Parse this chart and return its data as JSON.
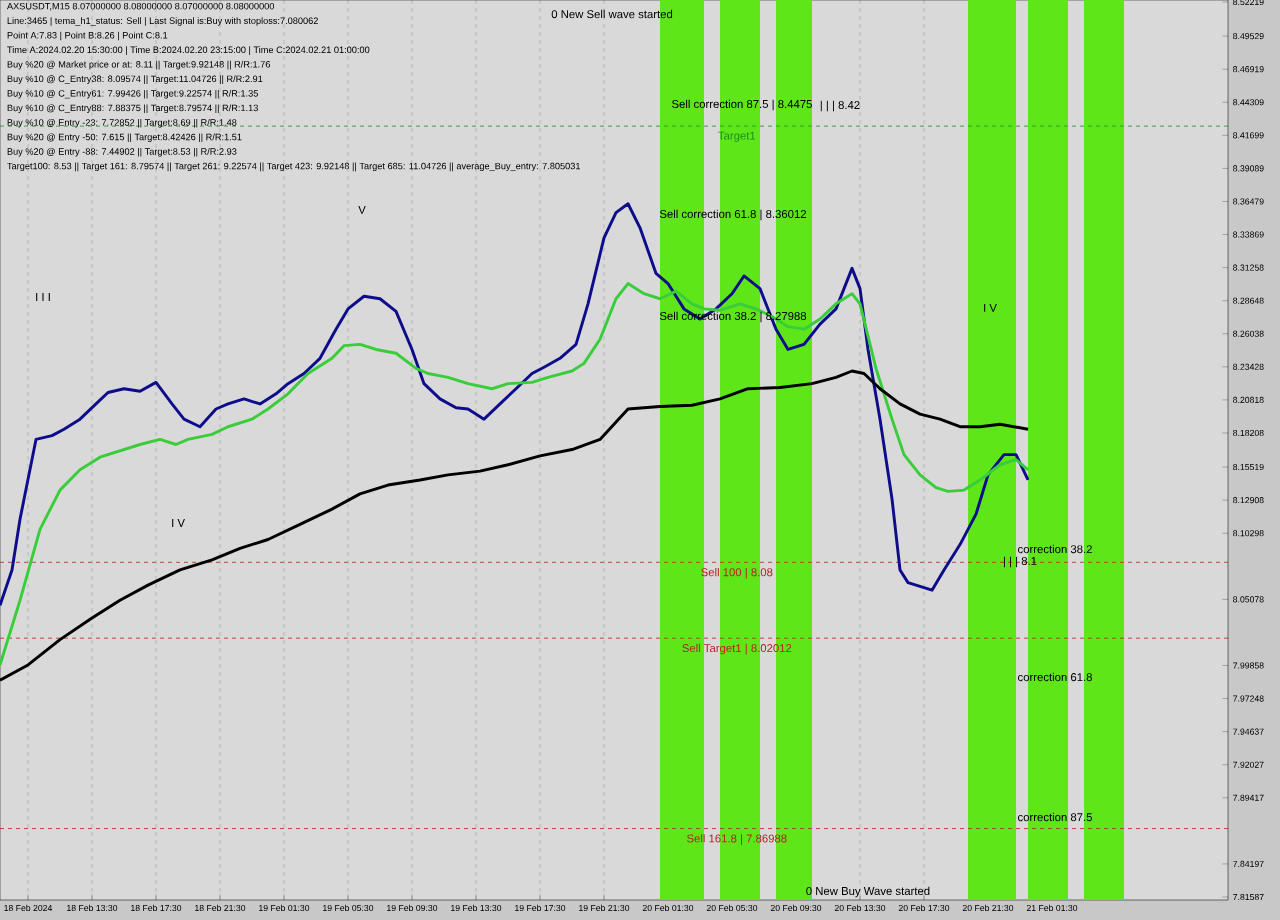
{
  "chart_data": {
    "type": "line",
    "title": "AXSUSDT,M15  8.07000000 8.08000000 8.07000000 8.08000000",
    "xlim": [
      "2024-02-18T07:45",
      "2024-02-21T12:30"
    ],
    "ylim": [
      7.8135,
      8.5238
    ],
    "xticks": [
      {
        "value": "2024-02-18T09:30",
        "label": "18 Feb 2024"
      },
      {
        "value": "2024-02-18T13:30",
        "label": "18 Feb 13:30"
      },
      {
        "value": "2024-02-18T17:30",
        "label": "18 Feb 17:30"
      },
      {
        "value": "2024-02-18T21:30",
        "label": "18 Feb 21:30"
      },
      {
        "value": "2024-02-19T01:30",
        "label": "19 Feb 01:30"
      },
      {
        "value": "2024-02-19T05:30",
        "label": "19 Feb 05:30"
      },
      {
        "value": "2024-02-19T09:30",
        "label": "19 Feb 09:30"
      },
      {
        "value": "2024-02-19T13:30",
        "label": "19 Feb 13:30"
      },
      {
        "value": "2024-02-19T17:30",
        "label": "19 Feb 17:30"
      },
      {
        "value": "2024-02-19T21:30",
        "label": "19 Feb 21:30"
      },
      {
        "value": "2024-02-20T01:30",
        "label": "20 Feb 01:30"
      },
      {
        "value": "2024-02-20T05:30",
        "label": "20 Feb 05:30"
      },
      {
        "value": "2024-02-20T09:30",
        "label": "20 Feb 09:30"
      },
      {
        "value": "2024-02-20T13:30",
        "label": "20 Feb 13:30"
      },
      {
        "value": "2024-02-20T17:30",
        "label": "20 Feb 17:30"
      },
      {
        "value": "2024-02-20T21:30",
        "label": "20 Feb 21:30"
      },
      {
        "value": "2024-02-21T01:30",
        "label": "21 Feb 01:30"
      }
    ],
    "yticks": [
      8.52219,
      8.49529,
      8.46919,
      8.44309,
      8.41699,
      8.39089,
      8.36479,
      8.33869,
      8.31258,
      8.28648,
      8.26038,
      8.23428,
      8.20818,
      8.18208,
      8.15519,
      8.12908,
      8.10298,
      8.05078,
      7.99858,
      7.97248,
      7.94637,
      7.92027,
      7.89417,
      7.84197,
      7.81587
    ],
    "grid": "x",
    "line_style": "solid",
    "marker": "none",
    "series": [
      {
        "color": "#0d0d8c",
        "x": [
          "2024-02-18T07:45",
          "2024-02-18T08:30",
          "2024-02-18T09:00",
          "2024-02-18T10:00",
          "2024-02-18T11:00",
          "2024-02-18T11:45",
          "2024-02-18T12:45",
          "2024-02-18T13:45",
          "2024-02-18T14:30",
          "2024-02-18T15:30",
          "2024-02-18T16:30",
          "2024-02-18T17:30",
          "2024-02-18T18:30",
          "2024-02-18T19:15",
          "2024-02-18T20:15",
          "2024-02-18T21:15",
          "2024-02-18T22:00",
          "2024-02-18T23:00",
          "2024-02-19T00:00",
          "2024-02-19T01:00",
          "2024-02-19T01:45",
          "2024-02-19T02:45",
          "2024-02-19T03:45",
          "2024-02-19T04:45",
          "2024-02-19T05:30",
          "2024-02-19T06:30",
          "2024-02-19T07:30",
          "2024-02-19T08:30",
          "2024-02-19T09:30",
          "2024-02-19T10:15",
          "2024-02-19T11:15",
          "2024-02-19T12:15",
          "2024-02-19T13:00",
          "2024-02-19T14:00",
          "2024-02-19T15:00",
          "2024-02-19T16:00",
          "2024-02-19T17:00",
          "2024-02-19T17:45",
          "2024-02-19T18:45",
          "2024-02-19T19:45",
          "2024-02-19T20:30",
          "2024-02-19T21:30",
          "2024-02-19T22:15",
          "2024-02-19T23:00",
          "2024-02-19T23:45",
          "2024-02-20T00:45",
          "2024-02-20T01:30",
          "2024-02-20T02:30",
          "2024-02-20T03:30",
          "2024-02-20T04:30",
          "2024-02-20T05:30",
          "2024-02-20T06:15",
          "2024-02-20T07:15",
          "2024-02-20T08:15",
          "2024-02-20T09:00",
          "2024-02-20T10:00",
          "2024-02-20T11:00",
          "2024-02-20T12:00",
          "2024-02-20T13:00",
          "2024-02-20T13:30",
          "2024-02-20T14:00",
          "2024-02-20T14:45",
          "2024-02-20T15:30",
          "2024-02-20T16:00",
          "2024-02-20T16:30",
          "2024-02-20T18:00",
          "2024-02-20T18:45",
          "2024-02-20T19:45",
          "2024-02-20T20:45",
          "2024-02-20T21:30",
          "2024-02-20T22:30",
          "2024-02-20T23:15",
          "2024-02-21T00:00"
        ],
        "values": [
          8.046,
          8.074,
          8.114,
          8.177,
          8.18,
          8.185,
          8.193,
          8.205,
          8.214,
          8.217,
          8.215,
          8.222,
          8.205,
          8.193,
          8.187,
          8.201,
          8.205,
          8.209,
          8.205,
          8.213,
          8.221,
          8.229,
          8.241,
          8.264,
          8.28,
          8.29,
          8.288,
          8.278,
          8.248,
          8.221,
          8.209,
          8.202,
          8.201,
          8.193,
          8.205,
          8.217,
          8.229,
          8.234,
          8.241,
          8.252,
          8.284,
          8.336,
          8.356,
          8.363,
          8.344,
          8.308,
          8.3,
          8.28,
          8.272,
          8.28,
          8.292,
          8.306,
          8.296,
          8.264,
          8.248,
          8.252,
          8.268,
          8.28,
          8.312,
          8.296,
          8.248,
          8.193,
          8.13,
          8.074,
          8.064,
          8.058,
          8.074,
          8.094,
          8.118,
          8.149,
          8.165,
          8.165,
          8.145
        ]
      },
      {
        "color": "#3acd3a",
        "x": [
          "2024-02-18T07:45",
          "2024-02-18T09:00",
          "2024-02-18T10:15",
          "2024-02-18T11:30",
          "2024-02-18T12:45",
          "2024-02-18T14:00",
          "2024-02-18T15:15",
          "2024-02-18T16:30",
          "2024-02-18T17:45",
          "2024-02-18T18:45",
          "2024-02-18T19:30",
          "2024-02-18T21:00",
          "2024-02-18T22:00",
          "2024-02-18T23:30",
          "2024-02-19T00:30",
          "2024-02-19T01:45",
          "2024-02-19T03:00",
          "2024-02-19T04:30",
          "2024-02-19T05:15",
          "2024-02-19T06:15",
          "2024-02-19T07:15",
          "2024-02-19T08:30",
          "2024-02-19T09:45",
          "2024-02-19T10:30",
          "2024-02-19T11:45",
          "2024-02-19T13:00",
          "2024-02-19T14:30",
          "2024-02-19T15:30",
          "2024-02-19T17:00",
          "2024-02-19T18:00",
          "2024-02-19T19:30",
          "2024-02-19T20:15",
          "2024-02-19T21:15",
          "2024-02-19T22:15",
          "2024-02-19T23:00",
          "2024-02-20T00:00",
          "2024-02-20T01:00",
          "2024-02-20T02:00",
          "2024-02-20T03:00",
          "2024-02-20T03:45",
          "2024-02-20T04:45",
          "2024-02-20T06:00",
          "2024-02-20T07:00",
          "2024-02-20T08:00",
          "2024-02-20T09:00",
          "2024-02-20T10:00",
          "2024-02-20T11:00",
          "2024-02-20T12:00",
          "2024-02-20T13:00",
          "2024-02-20T13:30",
          "2024-02-20T14:30",
          "2024-02-20T15:30",
          "2024-02-20T16:15",
          "2024-02-20T17:15",
          "2024-02-20T18:15",
          "2024-02-20T19:00",
          "2024-02-20T20:00",
          "2024-02-20T21:00",
          "2024-02-20T22:15",
          "2024-02-20T23:15",
          "2024-02-21T00:00"
        ],
        "values": [
          7.999,
          8.05,
          8.106,
          8.137,
          8.153,
          8.163,
          8.168,
          8.173,
          8.177,
          8.173,
          8.177,
          8.181,
          8.187,
          8.193,
          8.201,
          8.213,
          8.229,
          8.241,
          8.251,
          8.252,
          8.248,
          8.245,
          8.233,
          8.229,
          8.226,
          8.221,
          8.217,
          8.221,
          8.222,
          8.226,
          8.231,
          8.237,
          8.256,
          8.288,
          8.3,
          8.292,
          8.288,
          8.294,
          8.284,
          8.28,
          8.279,
          8.284,
          8.28,
          8.274,
          8.266,
          8.264,
          8.272,
          8.284,
          8.292,
          8.284,
          8.233,
          8.193,
          8.165,
          8.149,
          8.139,
          8.136,
          8.137,
          8.145,
          8.157,
          8.161,
          8.153
        ]
      },
      {
        "color": "#000000",
        "x": [
          "2024-02-18T07:45",
          "2024-02-18T09:30",
          "2024-02-18T11:30",
          "2024-02-18T13:30",
          "2024-02-18T15:15",
          "2024-02-18T17:00",
          "2024-02-18T19:00",
          "2024-02-18T21:00",
          "2024-02-18T22:45",
          "2024-02-19T00:30",
          "2024-02-19T02:30",
          "2024-02-19T04:30",
          "2024-02-19T06:15",
          "2024-02-19T08:00",
          "2024-02-19T10:00",
          "2024-02-19T11:45",
          "2024-02-19T13:45",
          "2024-02-19T15:30",
          "2024-02-19T17:30",
          "2024-02-19T19:30",
          "2024-02-19T21:15",
          "2024-02-19T23:00",
          "2024-02-20T01:00",
          "2024-02-20T03:00",
          "2024-02-20T04:45",
          "2024-02-20T06:30",
          "2024-02-20T08:30",
          "2024-02-20T10:30",
          "2024-02-20T12:00",
          "2024-02-20T13:00",
          "2024-02-20T13:45",
          "2024-02-20T14:45",
          "2024-02-20T16:00",
          "2024-02-20T17:15",
          "2024-02-20T18:30",
          "2024-02-20T19:45",
          "2024-02-20T21:00",
          "2024-02-20T22:15",
          "2024-02-21T00:00"
        ],
        "values": [
          7.987,
          7.999,
          8.019,
          8.036,
          8.05,
          8.062,
          8.074,
          8.082,
          8.091,
          8.098,
          8.11,
          8.122,
          8.134,
          8.141,
          8.145,
          8.149,
          8.152,
          8.157,
          8.164,
          8.169,
          8.177,
          8.201,
          8.203,
          8.204,
          8.209,
          8.217,
          8.218,
          8.221,
          8.226,
          8.231,
          8.229,
          8.217,
          8.205,
          8.197,
          8.193,
          8.187,
          8.187,
          8.189,
          8.185
        ]
      }
    ],
    "bands": [
      {
        "axis": "x",
        "from": "2024-02-20T01:00",
        "to": "2024-02-20T03:45",
        "color": "#5ee619"
      },
      {
        "axis": "x",
        "from": "2024-02-20T04:45",
        "to": "2024-02-20T07:15",
        "color": "#5ee619"
      },
      {
        "axis": "x",
        "from": "2024-02-20T08:15",
        "to": "2024-02-20T10:30",
        "color": "#5ee619"
      },
      {
        "axis": "x",
        "from": "2024-02-20T20:15",
        "to": "2024-02-20T23:15",
        "color": "#5ee619"
      },
      {
        "axis": "x",
        "from": "2024-02-21T00:00",
        "to": "2024-02-21T02:30",
        "color": "#5ee619"
      },
      {
        "axis": "x",
        "from": "2024-02-21T03:30",
        "to": "2024-02-21T06:00",
        "color": "#5ee619"
      }
    ],
    "ref_lines": [
      {
        "axis": "y",
        "value": 8.42426,
        "label": "Target1",
        "color": "#1e8c1e",
        "line_style": "dashed"
      },
      {
        "axis": "y",
        "value": 8.08,
        "label": "Sell 100 | 8.08",
        "color": "#b22222",
        "line_style": "dashed"
      },
      {
        "axis": "y",
        "value": 8.02012,
        "label": "Sell Target1 | 8.02012",
        "color": "#b22222",
        "line_style": "dashed"
      },
      {
        "axis": "y",
        "value": 7.86988,
        "label": "Sell 161.8 | 7.86988",
        "color": "#b22222",
        "line_style": "dashed"
      }
    ],
    "annotations": [
      "Line:3465 | tema_h1_status: Sell | Last Signal is:Buy with stoploss:7.080062",
      "Point A:7.83 | Point B:8.26 | Point C:8.1",
      "Time A:2024.02.20 15:30:00 | Time B:2024.02.20 23:15:00 | Time C:2024.02.21 01:00:00",
      "Buy %20 @ Market price or at: 8.11 || Target:9.92148 || R/R:1.76",
      "Buy %10 @ C_Entry38: 8.09574 || Target:11.04726 || R/R:2.91",
      "Buy %10 @ C_Entry61: 7.99426 || Target:9.22574 || R/R:1.35",
      "Buy %10 @ C_Entry88: 7.88375 || Target:8.79574 || R/R:1.13",
      "Buy %10 @ Entry -23: 7.72852 || Target:8.69 || R/R:1.48",
      "Buy %20 @ Entry -50: 7.615 || Target:8.42426 || R/R:1.51",
      "Buy %20 @ Entry -88: 7.44902 || Target:8.53 || R/R:2.93",
      "Target100: 8.53 || Target 161: 8.79574 || Target 261: 9.22574 || Target 423: 9.92148 || Target 685: 11.04726 || average_Buy_entry: 7.805031",
      "0 New Sell wave started",
      "0 New Buy Wave started",
      "Sell correction 87.5 | 8.4475",
      "Sell correction 61.8 | 8.36012",
      "Sell correction 38.2 | 8.27988",
      "| | | 8.42",
      "correction 38.2",
      "correction 61.8",
      "correction 87.5",
      "I V",
      "I I I",
      "V",
      "I V",
      "| | | 8.1"
    ]
  }
}
